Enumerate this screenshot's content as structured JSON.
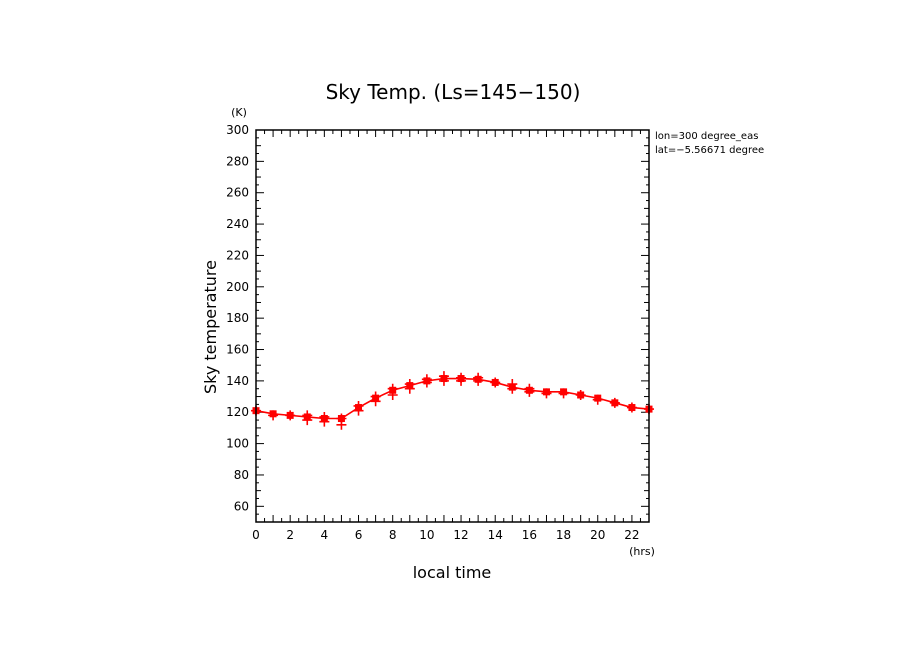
{
  "chart_data": {
    "type": "line",
    "title": "Sky Temp. (Ls=145−150)",
    "xlabel": "local time",
    "ylabel": "Sky temperature",
    "x_unit": "(hrs)",
    "y_unit": "(K)",
    "annotations": [
      "lon=300 degree_eas",
      "lat=−5.56671 degree"
    ],
    "xlim": [
      0,
      23
    ],
    "ylim": [
      50,
      300
    ],
    "x_ticks": [
      0,
      2,
      4,
      6,
      8,
      10,
      12,
      14,
      16,
      18,
      20,
      22
    ],
    "y_ticks": [
      60,
      80,
      100,
      120,
      140,
      160,
      180,
      200,
      220,
      240,
      260,
      280,
      300
    ],
    "grid": false,
    "series": [
      {
        "color": "#ff0000",
        "x": [
          0,
          1,
          2,
          3,
          4,
          5,
          6,
          7,
          8,
          9,
          10,
          11,
          12,
          13,
          14,
          15,
          16,
          17,
          18,
          19,
          20,
          21,
          22,
          23
        ],
        "values": [
          121,
          119,
          118,
          117,
          116,
          116,
          123,
          129,
          134,
          137,
          140,
          141.5,
          141.5,
          141,
          139,
          136,
          134,
          133,
          133,
          131,
          129,
          126,
          123,
          122
        ]
      }
    ],
    "markers": {
      "color": "#ff0000",
      "x": [
        0,
        1,
        2,
        3,
        3,
        4,
        4,
        5,
        5,
        6,
        6,
        7,
        7,
        8,
        8,
        9,
        9,
        10,
        10,
        11,
        11,
        12,
        12,
        13,
        13,
        14,
        15,
        15,
        16,
        16,
        17,
        18,
        19,
        20,
        21,
        22,
        23
      ],
      "y": [
        121,
        118,
        118,
        115,
        118,
        114,
        117,
        112,
        116,
        121,
        124,
        127,
        130,
        131,
        135,
        135,
        138,
        139,
        141,
        140,
        143,
        140,
        142,
        140,
        142,
        139,
        135,
        138,
        133,
        135,
        132,
        132,
        131,
        128,
        126,
        123,
        122
      ]
    }
  }
}
